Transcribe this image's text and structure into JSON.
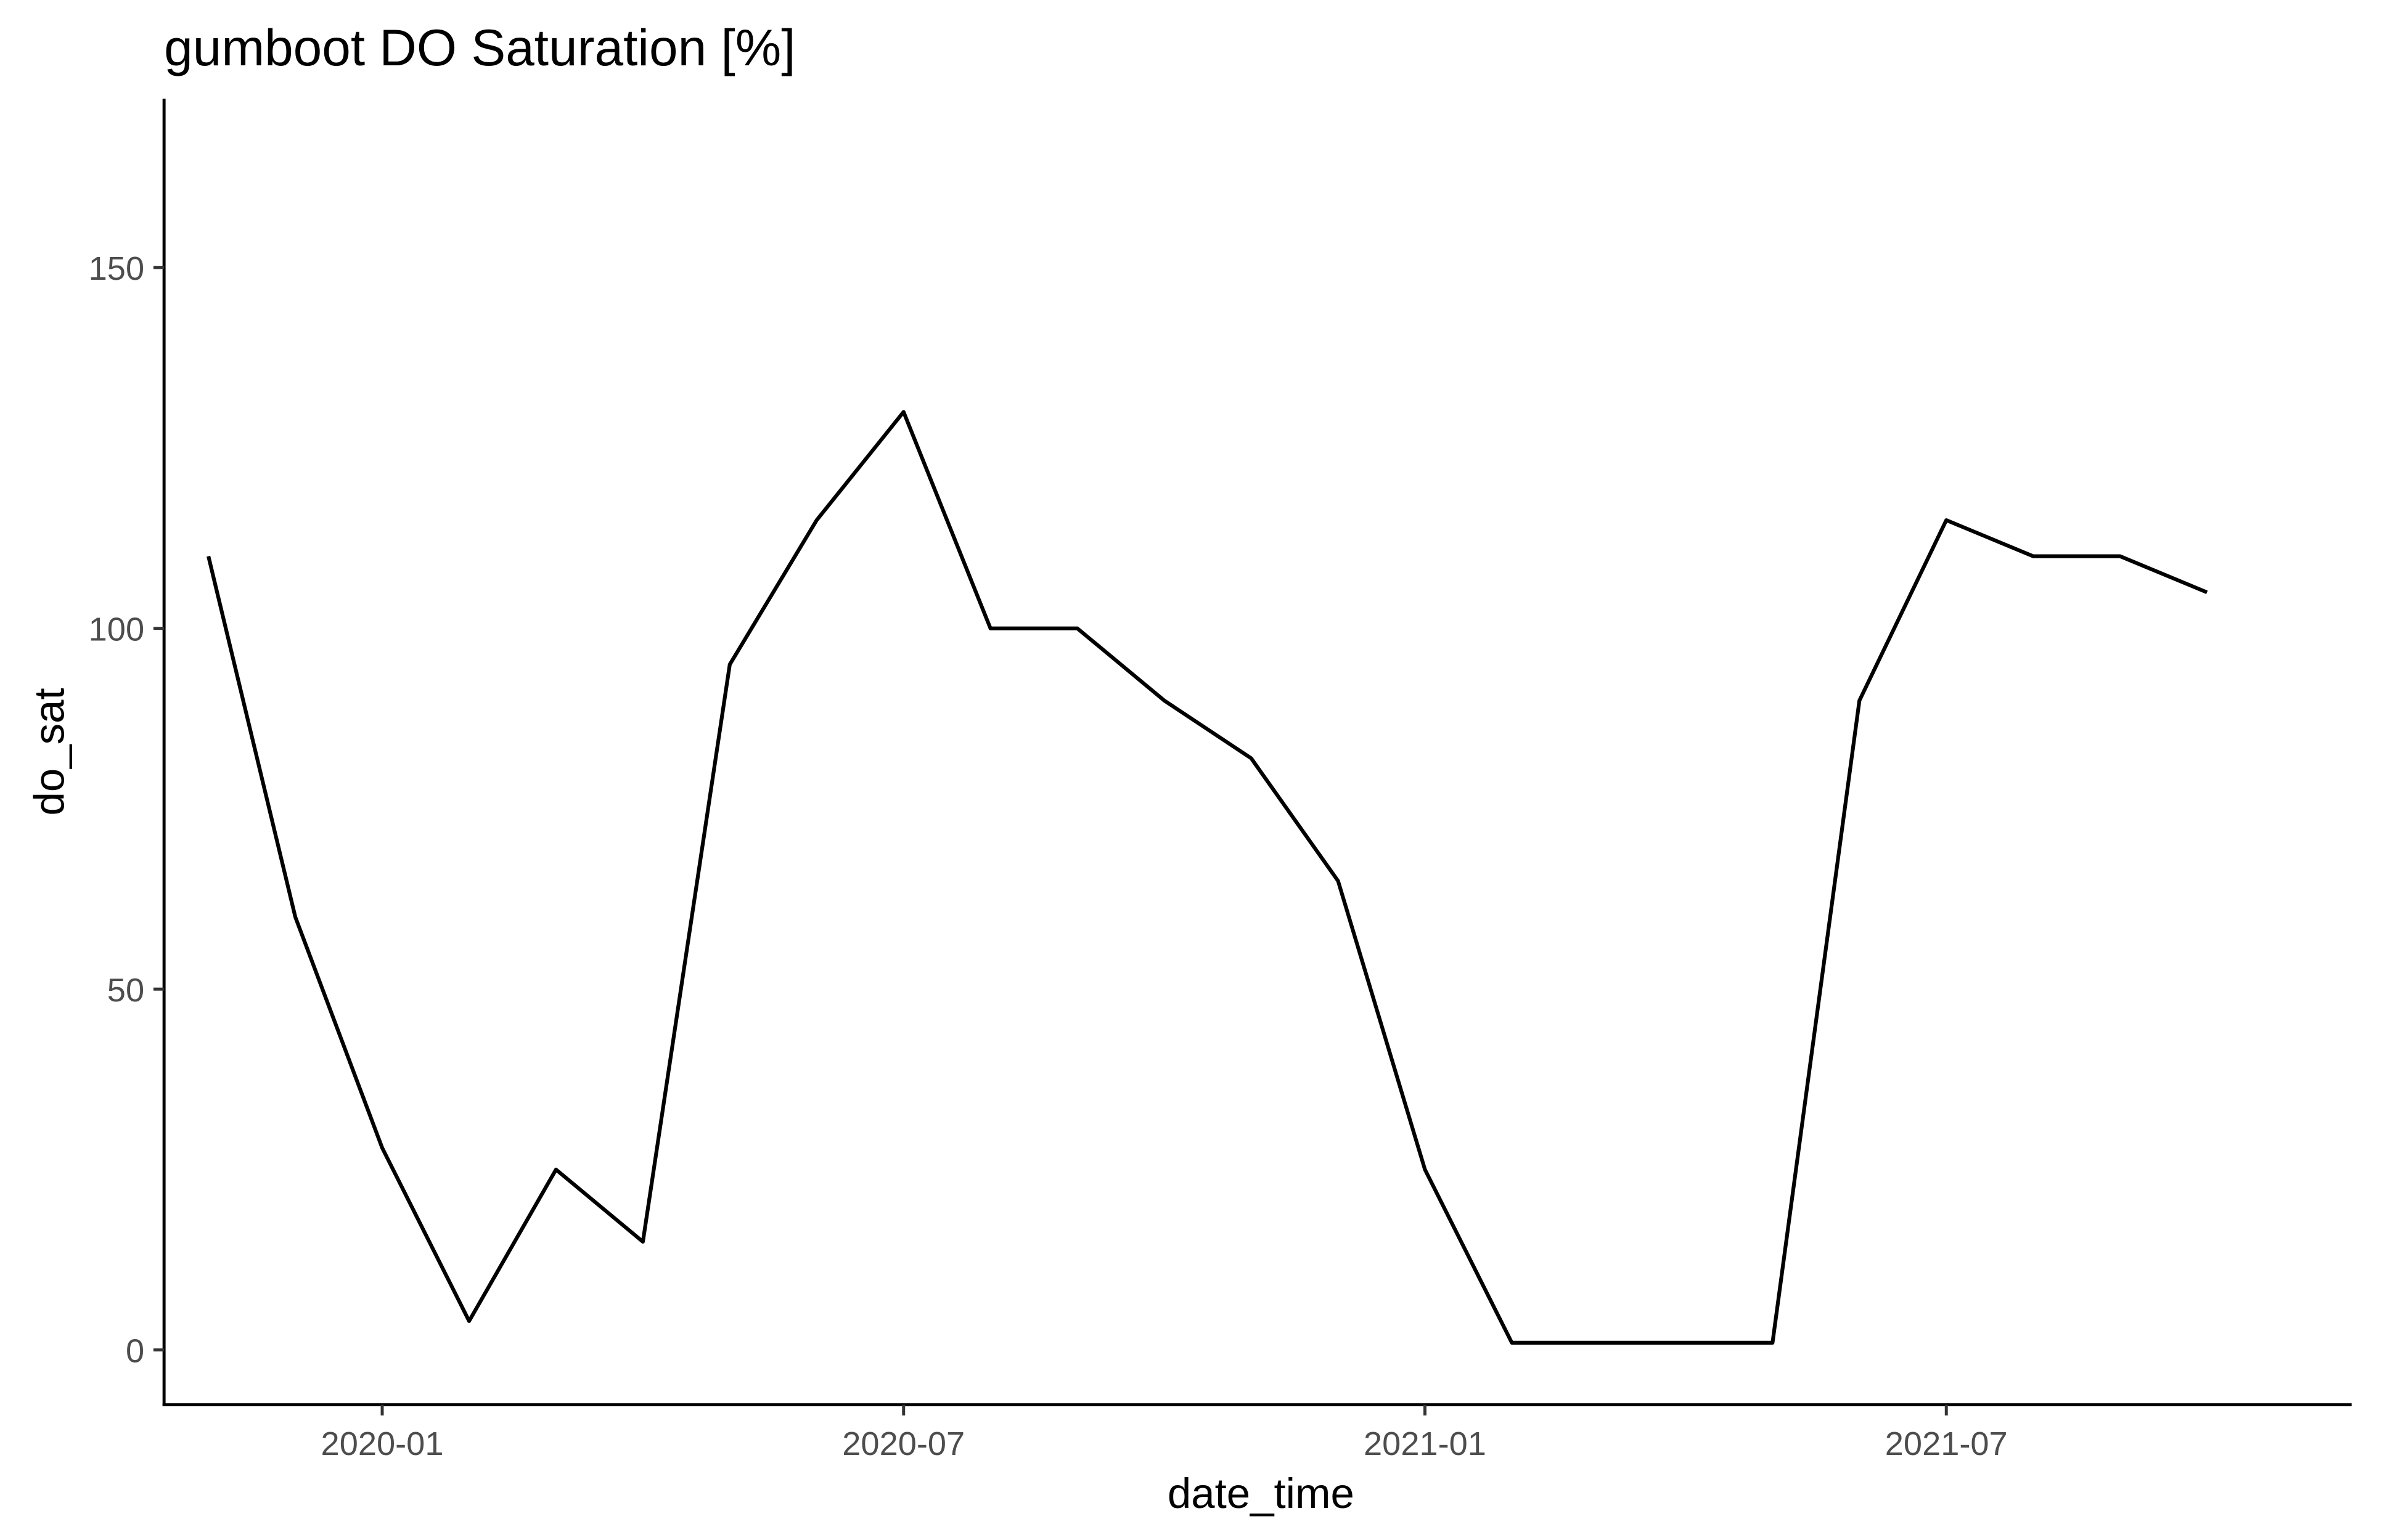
{
  "chart_data": {
    "type": "line",
    "title": "gumboot DO Saturation [%]",
    "x_label": "date_time",
    "y_label": "do_sat",
    "x": [
      "2019-11",
      "2019-12",
      "2020-01",
      "2020-02",
      "2020-03",
      "2020-04",
      "2020-05",
      "2020-06",
      "2020-07",
      "2020-08",
      "2020-09",
      "2020-10",
      "2020-11",
      "2020-12",
      "2021-01",
      "2021-02",
      "2021-03",
      "2021-04",
      "2021-05",
      "2021-06",
      "2021-07",
      "2021-08",
      "2021-09",
      "2021-10"
    ],
    "values": [
      110,
      60,
      28,
      4,
      25,
      15,
      95,
      115,
      130,
      100,
      100,
      90,
      82,
      65,
      25,
      1,
      1,
      1,
      1,
      90,
      115,
      110,
      110,
      105
    ],
    "color": "#000000",
    "xlim": [
      "2019-10",
      "2021-11"
    ],
    "xticks": [
      "2020-01",
      "2020-07",
      "2021-01",
      "2021-07"
    ],
    "ylim": [
      -7.6,
      173.4
    ],
    "yticks": [
      0,
      50,
      100,
      150
    ],
    "grid": false
  }
}
